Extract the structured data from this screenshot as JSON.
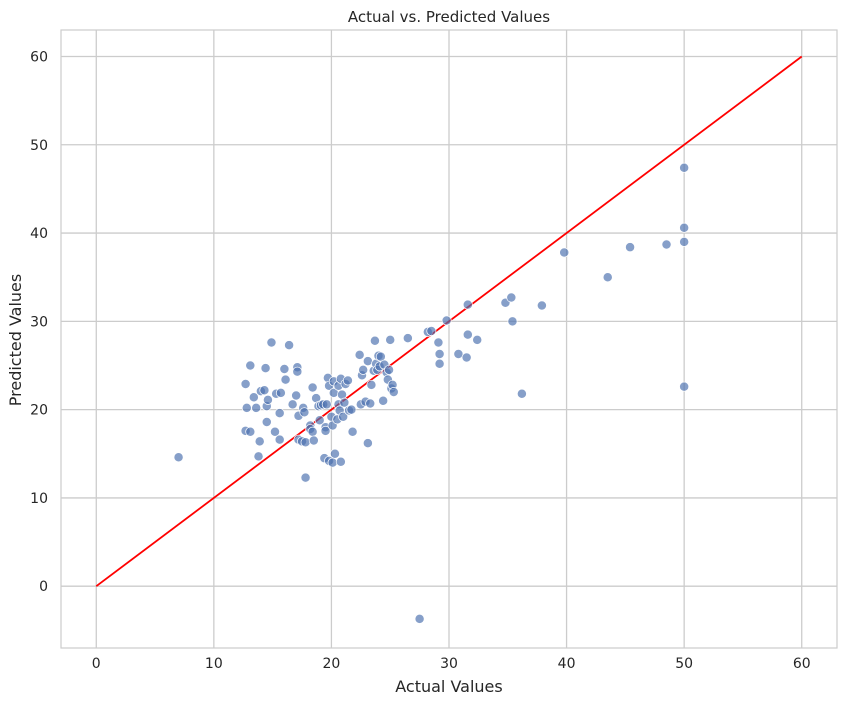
{
  "chart_data": {
    "type": "scatter",
    "title": "Actual vs. Predicted Values",
    "xlabel": "Actual Values",
    "ylabel": "Predicted Values",
    "xlim": [
      -3,
      63
    ],
    "ylim": [
      -7,
      63
    ],
    "xticks": [
      0,
      10,
      20,
      30,
      40,
      50,
      60
    ],
    "yticks": [
      0,
      10,
      20,
      30,
      40,
      50,
      60
    ],
    "grid": true,
    "legend": "none",
    "colors": {
      "points": "#4c72b0",
      "reference_line": "#ff0000",
      "grid": "#cccccc",
      "axis_frame": "#cccccc"
    },
    "reference_line": {
      "x": [
        0,
        60
      ],
      "y": [
        0,
        60
      ]
    },
    "points": [
      [
        7.0,
        14.6
      ],
      [
        12.7,
        22.9
      ],
      [
        12.8,
        20.2
      ],
      [
        12.7,
        17.6
      ],
      [
        13.1,
        17.5
      ],
      [
        13.1,
        25.0
      ],
      [
        13.4,
        21.4
      ],
      [
        13.6,
        20.2
      ],
      [
        13.8,
        14.7
      ],
      [
        13.9,
        16.4
      ],
      [
        14.0,
        22.1
      ],
      [
        14.3,
        22.2
      ],
      [
        14.4,
        24.7
      ],
      [
        14.5,
        20.4
      ],
      [
        14.5,
        18.6
      ],
      [
        14.6,
        21.1
      ],
      [
        14.9,
        27.6
      ],
      [
        15.2,
        17.5
      ],
      [
        15.3,
        21.8
      ],
      [
        15.6,
        19.6
      ],
      [
        15.6,
        16.6
      ],
      [
        15.7,
        21.9
      ],
      [
        16.0,
        24.6
      ],
      [
        16.1,
        23.4
      ],
      [
        16.4,
        27.3
      ],
      [
        16.7,
        20.6
      ],
      [
        17.0,
        21.6
      ],
      [
        17.1,
        24.8
      ],
      [
        17.1,
        24.3
      ],
      [
        17.2,
        19.3
      ],
      [
        17.2,
        16.6
      ],
      [
        17.5,
        16.4
      ],
      [
        17.6,
        20.2
      ],
      [
        17.7,
        19.7
      ],
      [
        17.8,
        12.3
      ],
      [
        17.8,
        16.3
      ],
      [
        18.2,
        18.2
      ],
      [
        18.2,
        17.8
      ],
      [
        18.4,
        22.5
      ],
      [
        18.4,
        17.5
      ],
      [
        18.5,
        16.5
      ],
      [
        18.7,
        21.3
      ],
      [
        18.9,
        20.4
      ],
      [
        19.0,
        18.8
      ],
      [
        19.1,
        20.5
      ],
      [
        19.3,
        20.6
      ],
      [
        19.4,
        14.5
      ],
      [
        19.5,
        18.0
      ],
      [
        19.5,
        17.6
      ],
      [
        19.6,
        20.6
      ],
      [
        19.7,
        23.6
      ],
      [
        19.8,
        22.7
      ],
      [
        19.8,
        14.2
      ],
      [
        20.0,
        19.2
      ],
      [
        20.1,
        18.2
      ],
      [
        20.1,
        14.0
      ],
      [
        20.2,
        21.9
      ],
      [
        20.2,
        23.2
      ],
      [
        20.3,
        15.0
      ],
      [
        20.5,
        18.9
      ],
      [
        20.6,
        20.6
      ],
      [
        20.6,
        22.7
      ],
      [
        20.7,
        19.9
      ],
      [
        20.8,
        23.5
      ],
      [
        20.8,
        14.1
      ],
      [
        20.9,
        21.7
      ],
      [
        21.0,
        19.2
      ],
      [
        21.1,
        20.8
      ],
      [
        21.2,
        22.9
      ],
      [
        21.4,
        23.3
      ],
      [
        21.5,
        19.9
      ],
      [
        21.7,
        20.0
      ],
      [
        21.8,
        17.5
      ],
      [
        22.4,
        26.2
      ],
      [
        22.5,
        20.6
      ],
      [
        22.6,
        23.9
      ],
      [
        22.7,
        24.5
      ],
      [
        22.9,
        20.9
      ],
      [
        23.1,
        25.5
      ],
      [
        23.1,
        16.2
      ],
      [
        23.3,
        20.7
      ],
      [
        23.4,
        22.8
      ],
      [
        23.6,
        24.4
      ],
      [
        23.7,
        27.8
      ],
      [
        23.8,
        25.2
      ],
      [
        23.9,
        24.5
      ],
      [
        24.0,
        26.1
      ],
      [
        24.1,
        24.9
      ],
      [
        24.2,
        26.0
      ],
      [
        24.4,
        21.0
      ],
      [
        24.5,
        25.1
      ],
      [
        24.7,
        24.2
      ],
      [
        24.8,
        23.4
      ],
      [
        24.9,
        24.5
      ],
      [
        25.0,
        27.9
      ],
      [
        25.1,
        22.4
      ],
      [
        25.2,
        22.8
      ],
      [
        25.3,
        22.0
      ],
      [
        26.5,
        28.1
      ],
      [
        28.2,
        28.8
      ],
      [
        28.5,
        28.9
      ],
      [
        29.1,
        27.6
      ],
      [
        29.2,
        26.3
      ],
      [
        29.2,
        25.2
      ],
      [
        29.8,
        30.1
      ],
      [
        30.8,
        26.3
      ],
      [
        31.5,
        25.9
      ],
      [
        31.6,
        31.9
      ],
      [
        31.6,
        28.5
      ],
      [
        32.4,
        27.9
      ],
      [
        34.8,
        32.1
      ],
      [
        35.3,
        32.7
      ],
      [
        35.4,
        30.0
      ],
      [
        36.2,
        21.8
      ],
      [
        37.9,
        31.8
      ],
      [
        39.8,
        37.8
      ],
      [
        43.5,
        35.0
      ],
      [
        45.4,
        38.4
      ],
      [
        48.5,
        38.7
      ],
      [
        50.0,
        47.4
      ],
      [
        50.0,
        40.6
      ],
      [
        50.0,
        39.0
      ],
      [
        50.0,
        22.6
      ],
      [
        27.5,
        -3.7
      ]
    ]
  }
}
